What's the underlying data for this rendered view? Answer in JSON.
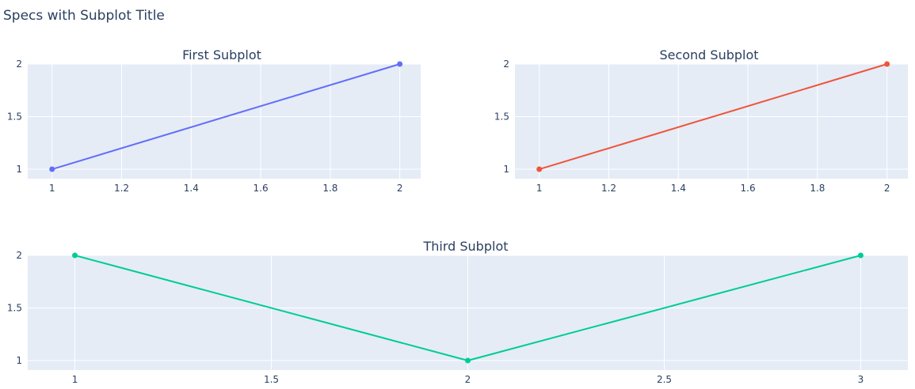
{
  "title": "Specs with Subplot Title",
  "colors": {
    "plot_bg": "#e5ecf6",
    "grid": "#ffffff",
    "text": "#2a3f5f"
  },
  "chart_data": [
    {
      "type": "line",
      "title": "First Subplot",
      "x": [
        1,
        2
      ],
      "series": [
        {
          "values": [
            1,
            2
          ],
          "color": "#636efa",
          "mode": "lines+markers"
        }
      ],
      "xlim": [
        0.93,
        2.06
      ],
      "ylim": [
        0.91,
        2.0
      ],
      "xticks": [
        1,
        1.2,
        1.4,
        1.6,
        1.8,
        2
      ],
      "xtick_labels": [
        "1",
        "1.2",
        "1.4",
        "1.6",
        "1.8",
        "2"
      ],
      "yticks": [
        1,
        1.5,
        2
      ],
      "ytick_labels": [
        "1",
        "1.5",
        "2"
      ],
      "grid": true
    },
    {
      "type": "line",
      "title": "Second Subplot",
      "x": [
        1,
        2
      ],
      "series": [
        {
          "values": [
            1,
            2
          ],
          "color": "#ef553b",
          "mode": "lines+markers"
        }
      ],
      "xlim": [
        0.93,
        2.06
      ],
      "ylim": [
        0.91,
        2.0
      ],
      "xticks": [
        1,
        1.2,
        1.4,
        1.6,
        1.8,
        2
      ],
      "xtick_labels": [
        "1",
        "1.2",
        "1.4",
        "1.6",
        "1.8",
        "2"
      ],
      "yticks": [
        1,
        1.5,
        2
      ],
      "ytick_labels": [
        "1",
        "1.5",
        "2"
      ],
      "grid": true
    },
    {
      "type": "line",
      "title": "Third Subplot",
      "x": [
        1,
        2,
        3
      ],
      "series": [
        {
          "values": [
            2,
            1,
            2
          ],
          "color": "#00cc96",
          "mode": "lines+markers"
        }
      ],
      "xlim": [
        0.88,
        3.12
      ],
      "ylim": [
        0.91,
        2.0
      ],
      "xticks": [
        1,
        1.5,
        2,
        2.5,
        3
      ],
      "xtick_labels": [
        "1",
        "1.5",
        "2",
        "2.5",
        "3"
      ],
      "yticks": [
        1,
        1.5,
        2
      ],
      "ytick_labels": [
        "1",
        "1.5",
        "2"
      ],
      "grid": true
    }
  ]
}
